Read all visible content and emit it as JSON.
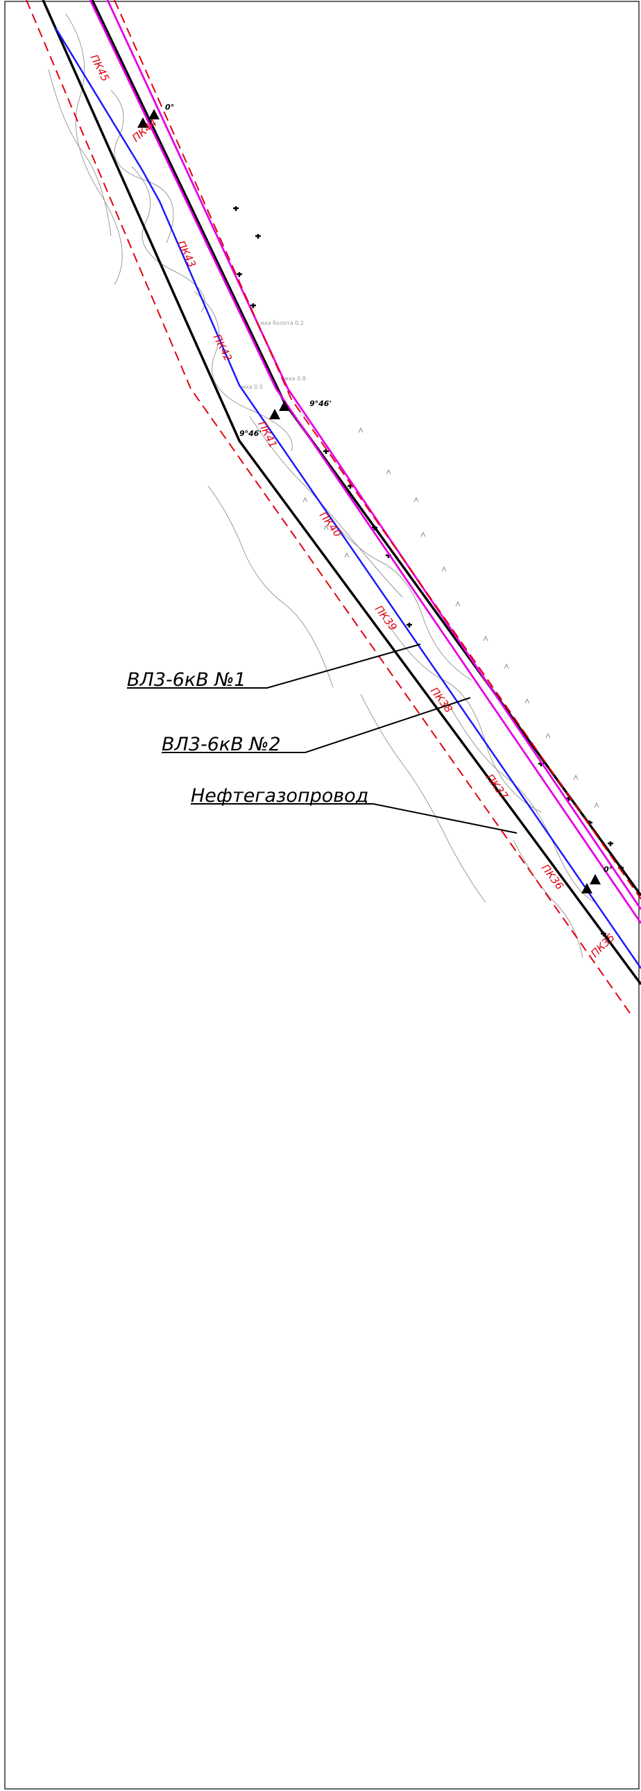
{
  "colors": {
    "frame": "#000000",
    "power_line": "#000000",
    "pipeline_axis": "#1a1aff",
    "corridor_bound": "#e600e6",
    "allotment_dashed": "#e0000f",
    "relief": "#9a9a9a",
    "picket_text": "#e0000f",
    "label_text": "#000000"
  },
  "pickets": [
    "ПК45",
    "ПК44",
    "ПК43",
    "ПК42",
    "ПК41",
    "ПК40",
    "ПК39",
    "ПК38",
    "ПК37",
    "ПК36",
    "ПК35"
  ],
  "angles": [
    "0°",
    "9°46'",
    "9°46'",
    "0°"
  ],
  "callouts": [
    {
      "label": "ВЛ3-6кВ  №1"
    },
    {
      "label": "ВЛ3-6кВ  №2"
    },
    {
      "label": "Нефтегазопровод"
    }
  ],
  "relief_notes": [
    "мха болота 0.2",
    "мха 0.8",
    "мха 0.5"
  ]
}
